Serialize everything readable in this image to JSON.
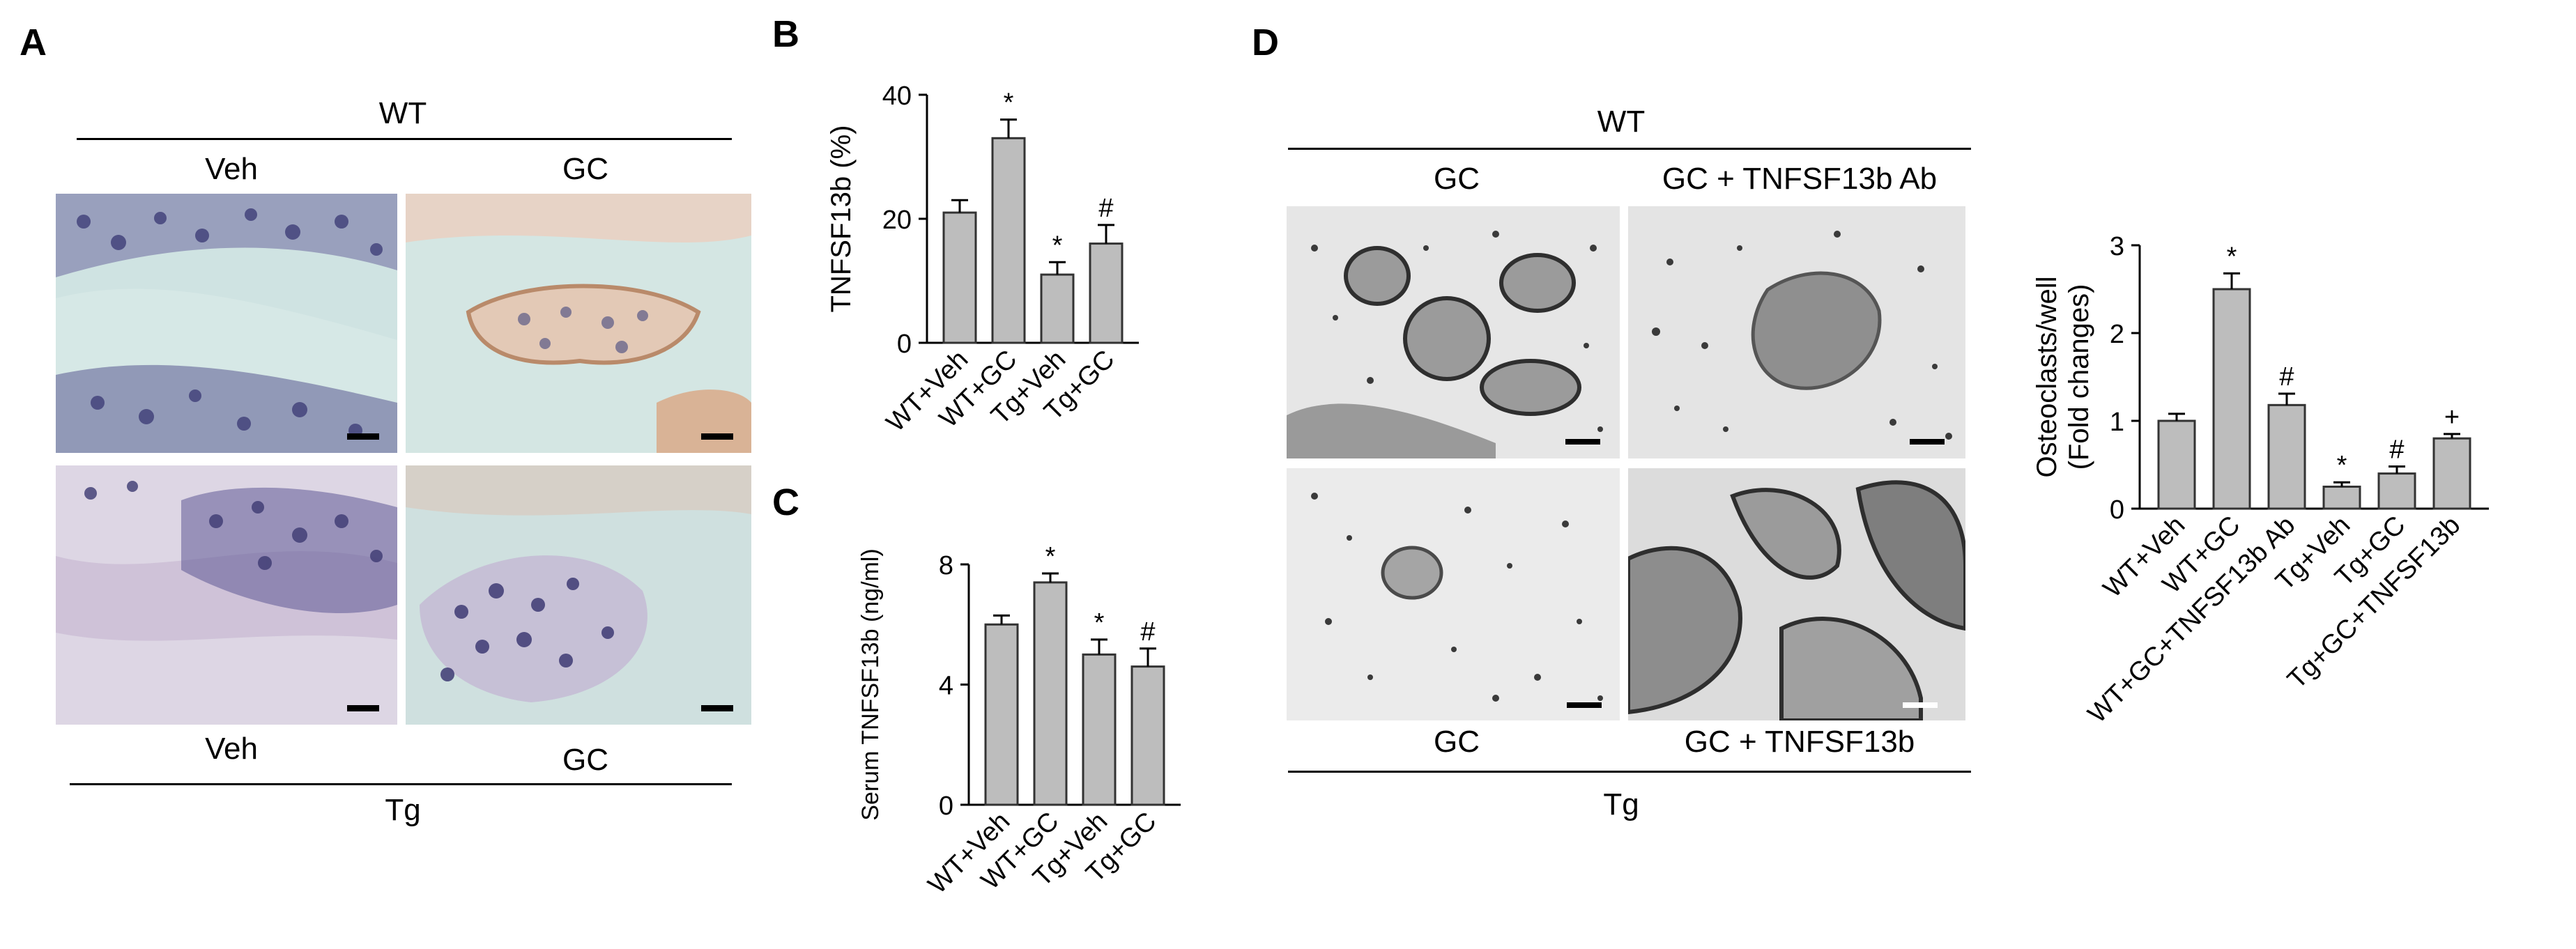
{
  "panels": {
    "A": {
      "letter": "A",
      "top_group": "WT",
      "bottom_group": "Tg",
      "top_col_labels": [
        "Veh",
        "GC"
      ],
      "bottom_col_labels": [
        "Veh",
        "GC"
      ]
    },
    "D": {
      "letter": "D",
      "top_group": "WT",
      "bottom_group": "Tg",
      "top_col_labels": [
        "GC",
        "GC + TNFSF13b Ab"
      ],
      "bottom_col_labels": [
        "GC",
        "GC + TNFSF13b"
      ]
    }
  },
  "colors": {
    "bar_fill": "#bdbdbd",
    "bar_stroke": "#333333",
    "ihc_background": "#cfe3e2",
    "ihc_nuclei": "#4a4a7e",
    "ihc_stain": "#c9a080",
    "trap_background": "#e6e6e6",
    "trap_cells": "#3a3a3a"
  },
  "icons": {
    "scale_bar": "scale-bar-icon"
  },
  "chart_data": [
    {
      "letter": "B",
      "type": "bar",
      "ylabel": "TNFSF13b (%)",
      "ylim": [
        0,
        40
      ],
      "yticks": [
        "0",
        "20",
        "40"
      ],
      "categories": [
        "WT+Veh",
        "WT+GC",
        "Tg+Veh",
        "Tg+GC"
      ],
      "values": [
        21,
        33,
        11,
        16
      ],
      "errors": [
        2,
        3,
        2,
        3
      ],
      "annotations": [
        "",
        "*",
        "*",
        "#"
      ]
    },
    {
      "letter": "C",
      "type": "bar",
      "ylabel": "Serum TNFSF13b (ng/ml)",
      "ylim": [
        0,
        8
      ],
      "yticks": [
        "0",
        "4",
        "8"
      ],
      "categories": [
        "WT+Veh",
        "WT+GC",
        "Tg+Veh",
        "Tg+GC"
      ],
      "values": [
        6.0,
        7.4,
        5.0,
        4.6
      ],
      "errors": [
        0.3,
        0.3,
        0.5,
        0.6
      ],
      "annotations": [
        "",
        "*",
        "*",
        "#"
      ]
    },
    {
      "letter": "",
      "type": "bar",
      "ylabel_lines": [
        "Osteoclasts/well",
        "(Fold changes)"
      ],
      "ylim": [
        0,
        3
      ],
      "yticks": [
        "0",
        "1",
        "2",
        "3"
      ],
      "categories": [
        "WT+Veh",
        "WT+GC",
        "WT+GC+TNFSF13b Ab",
        "Tg+Veh",
        "Tg+GC",
        "Tg+GC+TNFSF13b"
      ],
      "values": [
        1.0,
        2.5,
        1.18,
        0.25,
        0.4,
        0.8
      ],
      "errors": [
        0.08,
        0.18,
        0.13,
        0.05,
        0.08,
        0.05
      ],
      "annotations": [
        "",
        "*",
        "#",
        "*",
        "#",
        "+"
      ]
    }
  ]
}
